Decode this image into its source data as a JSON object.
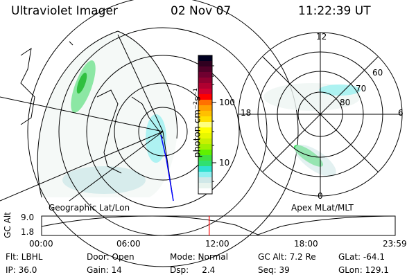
{
  "header": {
    "instrument": "Ultraviolet Imager",
    "date": "02 Nov 07",
    "time": "11:22:39 UT"
  },
  "colorbar": {
    "label": "photon cm⁻²s⁻¹",
    "ticks": [
      "100",
      "10"
    ],
    "colors": [
      "#000020",
      "#300020",
      "#500028",
      "#700030",
      "#900030",
      "#b00030",
      "#d00030",
      "#ff0000",
      "#ff7000",
      "#ffa000",
      "#ffc000",
      "#ffe000",
      "#ffff80",
      "#ffff00",
      "#e8f800",
      "#c8f000",
      "#a0f000",
      "#60f000",
      "#40e040",
      "#30e070",
      "#30e0d0",
      "#90f0f0",
      "#d0e8e8",
      "#e8f4ee",
      "#ffffff"
    ]
  },
  "geo_panel": {
    "label": "Geographic Lat/Lon"
  },
  "polar_panel": {
    "label": "Apex MLat/MLT",
    "mlt_labels": {
      "top": "12",
      "bottom": "0",
      "left": "18",
      "right": "6"
    },
    "lat_labels": [
      "60",
      "70",
      "80"
    ]
  },
  "timeline": {
    "ylabel": "GC Alt",
    "ymax": "9.0",
    "ymin": "1.8",
    "xticks": [
      "00:00",
      "06:00",
      "12:00",
      "18:00",
      "23:59"
    ],
    "current_fraction": 0.474,
    "marker_color": "#ff0000"
  },
  "info": {
    "flt": "Flt: LBHL",
    "ip": "IP: 36.0",
    "door": "Door: Open",
    "gain": "Gain: 14",
    "mode": "Mode: Normal",
    "dsp": "Dsp:     2.4",
    "gcalt": "GC Alt: 7.2 Re",
    "seq": "Seq: 39",
    "glat": "GLat: -64.1",
    "glon": "GLon: 129.1"
  }
}
